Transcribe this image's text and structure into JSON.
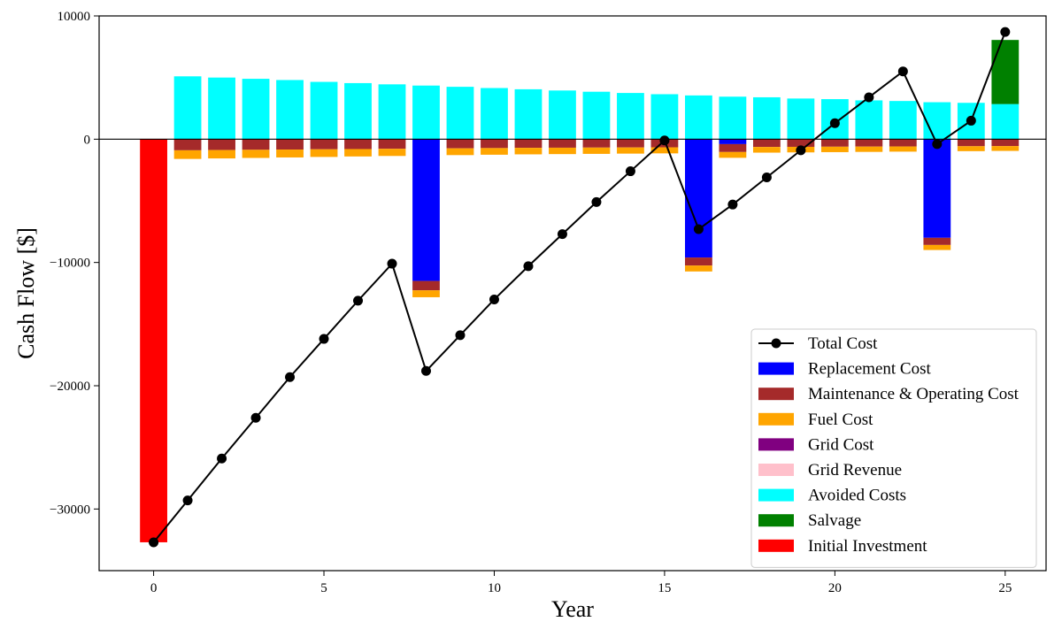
{
  "chart_data": {
    "type": "bar",
    "xlabel": "Year",
    "ylabel": "Cash Flow [$]",
    "xlim": [
      -1.6,
      26.2
    ],
    "ylim": [
      -35000,
      10000
    ],
    "x_ticks": [
      0,
      5,
      10,
      15,
      20,
      25
    ],
    "y_ticks": [
      -30000,
      -20000,
      -10000,
      0,
      10000
    ],
    "zero_line": true,
    "grid": false,
    "legend_placement": "lower-right",
    "colors": {
      "replacement": "#0000ff",
      "maintenance": "#a52a2a",
      "fuel": "#ffa500",
      "grid_cost": "#800080",
      "grid_revenue": "#ffc0cb",
      "avoided": "#00ffff",
      "salvage": "#008000",
      "initial": "#ff0000",
      "total_line": "#000000"
    },
    "legend": [
      {
        "label": "Total Cost",
        "key": "total_line",
        "kind": "line"
      },
      {
        "label": "Replacement Cost",
        "key": "replacement",
        "kind": "patch"
      },
      {
        "label": "Maintenance & Operating Cost",
        "key": "maintenance",
        "kind": "patch"
      },
      {
        "label": "Fuel Cost",
        "key": "fuel",
        "kind": "patch"
      },
      {
        "label": "Grid Cost",
        "key": "grid_cost",
        "kind": "patch"
      },
      {
        "label": "Grid Revenue",
        "key": "grid_revenue",
        "kind": "patch"
      },
      {
        "label": "Avoided Costs",
        "key": "avoided",
        "kind": "patch"
      },
      {
        "label": "Salvage",
        "key": "salvage",
        "kind": "patch"
      },
      {
        "label": "Initial Investment",
        "key": "initial",
        "kind": "patch"
      }
    ],
    "years": [
      0,
      1,
      2,
      3,
      4,
      5,
      6,
      7,
      8,
      9,
      10,
      11,
      12,
      13,
      14,
      15,
      16,
      17,
      18,
      19,
      20,
      21,
      22,
      23,
      24,
      25
    ],
    "series": [
      {
        "name": "Initial Investment",
        "key": "initial",
        "values": [
          -32700,
          0,
          0,
          0,
          0,
          0,
          0,
          0,
          0,
          0,
          0,
          0,
          0,
          0,
          0,
          0,
          0,
          0,
          0,
          0,
          0,
          0,
          0,
          0,
          0,
          0
        ]
      },
      {
        "name": "Replacement Cost",
        "key": "replacement",
        "values": [
          0,
          0,
          0,
          0,
          0,
          0,
          0,
          0,
          -11500,
          0,
          0,
          0,
          0,
          0,
          0,
          0,
          -9600,
          -400,
          0,
          0,
          0,
          0,
          0,
          -8000,
          0,
          0
        ]
      },
      {
        "name": "Maintenance & Operating Cost",
        "key": "maintenance",
        "values": [
          0,
          -900,
          -880,
          -860,
          -840,
          -820,
          -800,
          -780,
          -760,
          -740,
          -720,
          -700,
          -690,
          -680,
          -670,
          -660,
          -650,
          -640,
          -630,
          -620,
          -610,
          -600,
          -590,
          -580,
          -570,
          -560
        ]
      },
      {
        "name": "Fuel Cost",
        "key": "fuel",
        "values": [
          0,
          -700,
          -680,
          -660,
          -640,
          -620,
          -600,
          -580,
          -560,
          -550,
          -540,
          -530,
          -520,
          -510,
          -500,
          -490,
          -480,
          -470,
          -460,
          -450,
          -440,
          -430,
          -420,
          -410,
          -400,
          -390
        ]
      },
      {
        "name": "Grid Cost",
        "key": "grid_cost",
        "values": [
          0,
          0,
          0,
          0,
          0,
          0,
          0,
          0,
          0,
          0,
          0,
          0,
          0,
          0,
          0,
          0,
          0,
          0,
          0,
          0,
          0,
          0,
          0,
          0,
          0,
          0
        ]
      },
      {
        "name": "Grid Revenue",
        "key": "grid_revenue",
        "values": [
          0,
          0,
          0,
          0,
          0,
          0,
          0,
          0,
          0,
          0,
          0,
          0,
          0,
          0,
          0,
          0,
          0,
          0,
          0,
          0,
          0,
          0,
          0,
          0,
          0,
          0
        ]
      },
      {
        "name": "Avoided Costs",
        "key": "avoided",
        "values": [
          0,
          5100,
          5000,
          4900,
          4800,
          4650,
          4550,
          4450,
          4350,
          4250,
          4150,
          4050,
          3950,
          3850,
          3750,
          3650,
          3550,
          3450,
          3400,
          3300,
          3250,
          3150,
          3100,
          3000,
          2950,
          2850
        ]
      },
      {
        "name": "Salvage",
        "key": "salvage",
        "values": [
          0,
          0,
          0,
          0,
          0,
          0,
          0,
          0,
          0,
          0,
          0,
          0,
          0,
          0,
          0,
          0,
          0,
          0,
          0,
          0,
          0,
          0,
          0,
          0,
          0,
          5200
        ]
      }
    ],
    "total_cost": [
      -32700,
      -29300,
      -25900,
      -22600,
      -19300,
      -16200,
      -13100,
      -10100,
      -18800,
      -15900,
      -13000,
      -10300,
      -7700,
      -5100,
      -2600,
      -100,
      -7300,
      -5300,
      -3100,
      -900,
      1300,
      3400,
      5500,
      -400,
      1500,
      8700
    ]
  }
}
